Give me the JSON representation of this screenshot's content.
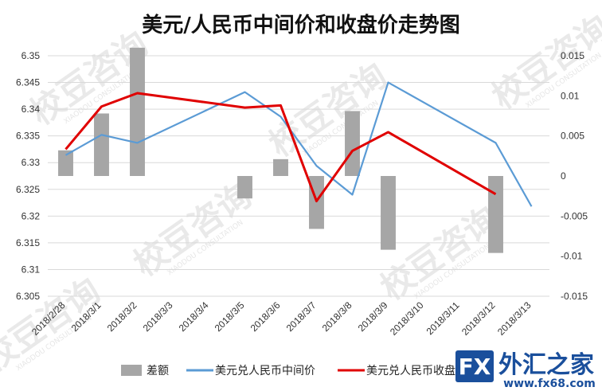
{
  "chart_data": {
    "type": "bar+line",
    "title": "美元/人民币中间价和收盘价走势图",
    "categories": [
      "2018/2/28",
      "2018/3/1",
      "2018/3/2",
      "2018/3/3",
      "2018/3/4",
      "2018/3/5",
      "2018/3/6",
      "2018/3/7",
      "2018/3/8",
      "2018/3/9",
      "2018/3/10",
      "2018/3/11",
      "2018/3/12",
      "2018/3/13"
    ],
    "left_axis": {
      "ylim": [
        6.305,
        6.35
      ],
      "ticks": [
        "6.305",
        "6.31",
        "6.315",
        "6.32",
        "6.325",
        "6.33",
        "6.335",
        "6.34",
        "6.345",
        "6.35"
      ]
    },
    "right_axis": {
      "ylim": [
        -0.015,
        0.015
      ],
      "ticks": [
        "-0.015",
        "-0.01",
        "-0.005",
        "0",
        "0.005",
        "0.01",
        "0.015"
      ]
    },
    "series": [
      {
        "name": "差额",
        "kind": "bar",
        "axis": "right",
        "color": "#a6a6a6",
        "values": [
          0.0032,
          0.0078,
          0.016,
          null,
          null,
          -0.0028,
          0.0021,
          -0.0066,
          0.0081,
          -0.0092,
          null,
          null,
          -0.0096,
          null
        ]
      },
      {
        "name": "美元兑人民币中间价",
        "kind": "line",
        "axis": "left",
        "color": "#5b9bd5",
        "values": [
          6.3314,
          6.3352,
          6.3337,
          null,
          null,
          6.3432,
          6.3386,
          6.3294,
          6.324,
          6.345,
          null,
          null,
          6.3337,
          6.3218
        ]
      },
      {
        "name": "美元兑人民币收盘价",
        "kind": "line",
        "axis": "left",
        "color": "#e00000",
        "values": [
          6.3325,
          6.3405,
          6.343,
          null,
          null,
          6.3403,
          6.3407,
          6.3228,
          6.3322,
          6.3357,
          null,
          null,
          6.3241,
          null
        ]
      }
    ],
    "legend_position": "bottom",
    "grid": true
  },
  "watermark": {
    "text": "校豆咨询",
    "sub": "XIAODOU CONSULTATION"
  },
  "logo": {
    "main": "外汇之家",
    "brand": "FX",
    "sub": "www.fx68.com"
  }
}
